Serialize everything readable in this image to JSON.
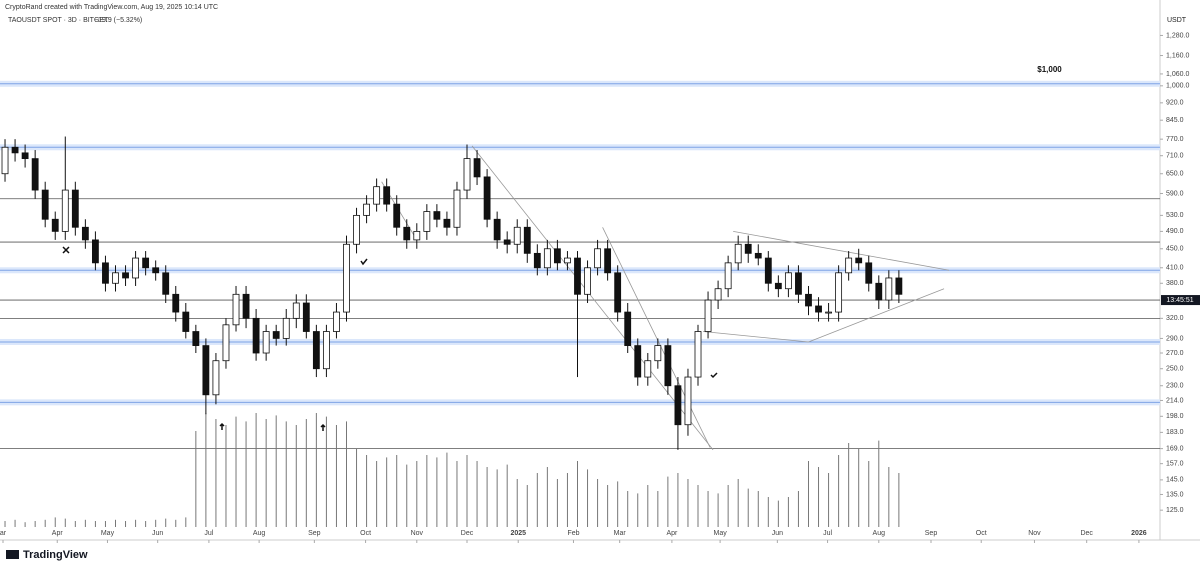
{
  "header": {
    "credit": "CryptoRand created with TradingView.com, Aug 19, 2025 10:14 UTC",
    "symbol": "TAOUSDT SPOT · 3D · BITGET",
    "change": "−19.9 (−5.32%)"
  },
  "footer": {
    "logo": "TradingView"
  },
  "chart_data": {
    "type": "candlestick",
    "currency": "USDT",
    "log_scale": true,
    "xlim": [
      -0.5,
      115
    ],
    "ylim": [
      108,
      1450
    ],
    "vlim": [
      0,
      100
    ],
    "xticks": [
      {
        "value": -0.2,
        "label": "ar"
      },
      {
        "value": 5.2,
        "label": "Apr"
      },
      {
        "value": 10.2,
        "label": "May"
      },
      {
        "value": 15.2,
        "label": "Jun"
      },
      {
        "value": 20.3,
        "label": "Jul"
      },
      {
        "value": 25.3,
        "label": "Aug"
      },
      {
        "value": 30.8,
        "label": "Sep"
      },
      {
        "value": 35.9,
        "label": "Oct"
      },
      {
        "value": 41,
        "label": "Nov"
      },
      {
        "value": 46,
        "label": "Dec"
      },
      {
        "value": 51.1,
        "label": "2025"
      },
      {
        "value": 56.6,
        "label": "Feb"
      },
      {
        "value": 61.2,
        "label": "Mar"
      },
      {
        "value": 66.4,
        "label": "Apr"
      },
      {
        "value": 71.2,
        "label": "May"
      },
      {
        "value": 76.9,
        "label": "Jun"
      },
      {
        "value": 81.9,
        "label": "Jul"
      },
      {
        "value": 87,
        "label": "Aug"
      },
      {
        "value": 92.2,
        "label": "Sep"
      },
      {
        "value": 97.2,
        "label": "Oct"
      },
      {
        "value": 102.5,
        "label": "Nov"
      },
      {
        "value": 107.7,
        "label": "Dec"
      },
      {
        "value": 112.9,
        "label": "2026"
      }
    ],
    "yticks": [
      {
        "value": 1280,
        "label": "1,280.0"
      },
      {
        "value": 1160,
        "label": "1,160.0"
      },
      {
        "value": 1060,
        "label": "1,060.0"
      },
      {
        "value": 1000,
        "label": "1,000.0"
      },
      {
        "value": 920,
        "label": "920.0"
      },
      {
        "value": 845,
        "label": "845.0"
      },
      {
        "value": 770,
        "label": "770.0"
      },
      {
        "value": 710,
        "label": "710.0"
      },
      {
        "value": 650,
        "label": "650.0"
      },
      {
        "value": 590,
        "label": "590.0"
      },
      {
        "value": 530,
        "label": "530.0"
      },
      {
        "value": 490,
        "label": "490.0"
      },
      {
        "value": 450,
        "label": "450.0"
      },
      {
        "value": 410,
        "label": "410.0"
      },
      {
        "value": 380,
        "label": "380.0"
      },
      {
        "value": 320,
        "label": "320.0"
      },
      {
        "value": 290,
        "label": "290.0"
      },
      {
        "value": 270,
        "label": "270.0"
      },
      {
        "value": 250,
        "label": "250.0"
      },
      {
        "value": 230,
        "label": "230.0"
      },
      {
        "value": 214,
        "label": "214.0"
      },
      {
        "value": 198,
        "label": "198.0"
      },
      {
        "value": 183,
        "label": "183.0"
      },
      {
        "value": 169,
        "label": "169.0"
      },
      {
        "value": 157,
        "label": "157.0"
      },
      {
        "value": 145,
        "label": "145.0"
      },
      {
        "value": 135,
        "label": "135.0"
      },
      {
        "value": 125,
        "label": "125.0"
      }
    ],
    "countdown": {
      "value": 350,
      "label": "13:45:51"
    },
    "annotation": {
      "value": 1000,
      "x": 104,
      "label": "$1,000"
    },
    "zones": [
      1010,
      740,
      405,
      285,
      212
    ],
    "levels": [
      575,
      465,
      350,
      320,
      169
    ],
    "trendlines": [
      [
        [
          46.5,
          745
        ],
        [
          70.5,
          168
        ]
      ],
      [
        [
          37.5,
          625
        ],
        [
          41,
          470
        ]
      ],
      [
        [
          59.5,
          500
        ],
        [
          70.2,
          170
        ]
      ],
      [
        [
          69.5,
          300
        ],
        [
          80,
          285
        ]
      ],
      [
        [
          72.5,
          490
        ],
        [
          94,
          405
        ]
      ],
      [
        [
          80,
          285
        ],
        [
          93.5,
          370
        ]
      ]
    ],
    "candles": [
      [
        650,
        770,
        625,
        740
      ],
      [
        740,
        770,
        690,
        720
      ],
      [
        720,
        750,
        670,
        700
      ],
      [
        700,
        730,
        575,
        600
      ],
      [
        600,
        625,
        500,
        520
      ],
      [
        520,
        540,
        470,
        490
      ],
      [
        490,
        780,
        470,
        600
      ],
      [
        600,
        625,
        480,
        500
      ],
      [
        500,
        520,
        450,
        470
      ],
      [
        470,
        490,
        405,
        420
      ],
      [
        420,
        435,
        365,
        380
      ],
      [
        380,
        415,
        365,
        400
      ],
      [
        400,
        415,
        375,
        390
      ],
      [
        390,
        445,
        375,
        430
      ],
      [
        430,
        445,
        395,
        410
      ],
      [
        410,
        425,
        385,
        400
      ],
      [
        400,
        415,
        345,
        360
      ],
      [
        360,
        375,
        315,
        330
      ],
      [
        330,
        345,
        290,
        300
      ],
      [
        300,
        310,
        270,
        280
      ],
      [
        280,
        290,
        200,
        220
      ],
      [
        220,
        270,
        210,
        260
      ],
      [
        260,
        320,
        250,
        310
      ],
      [
        310,
        375,
        300,
        360
      ],
      [
        360,
        375,
        305,
        320
      ],
      [
        320,
        335,
        260,
        270
      ],
      [
        270,
        310,
        260,
        300
      ],
      [
        300,
        310,
        280,
        290
      ],
      [
        290,
        335,
        280,
        320
      ],
      [
        320,
        360,
        305,
        345
      ],
      [
        345,
        360,
        290,
        300
      ],
      [
        300,
        310,
        240,
        250
      ],
      [
        250,
        310,
        240,
        300
      ],
      [
        300,
        345,
        290,
        330
      ],
      [
        330,
        480,
        315,
        460
      ],
      [
        460,
        550,
        440,
        530
      ],
      [
        530,
        585,
        510,
        560
      ],
      [
        560,
        635,
        540,
        610
      ],
      [
        610,
        635,
        540,
        560
      ],
      [
        560,
        585,
        480,
        500
      ],
      [
        500,
        520,
        450,
        470
      ],
      [
        470,
        510,
        450,
        490
      ],
      [
        490,
        560,
        470,
        540
      ],
      [
        540,
        560,
        500,
        520
      ],
      [
        520,
        540,
        480,
        500
      ],
      [
        500,
        625,
        480,
        600
      ],
      [
        600,
        750,
        575,
        700
      ],
      [
        700,
        730,
        615,
        640
      ],
      [
        640,
        665,
        500,
        520
      ],
      [
        520,
        540,
        450,
        470
      ],
      [
        470,
        490,
        440,
        460
      ],
      [
        460,
        520,
        440,
        500
      ],
      [
        500,
        520,
        420,
        440
      ],
      [
        440,
        460,
        395,
        410
      ],
      [
        410,
        470,
        395,
        450
      ],
      [
        450,
        470,
        405,
        420
      ],
      [
        420,
        445,
        405,
        430
      ],
      [
        430,
        445,
        240,
        360
      ],
      [
        360,
        425,
        345,
        410
      ],
      [
        410,
        470,
        395,
        450
      ],
      [
        450,
        470,
        385,
        400
      ],
      [
        400,
        415,
        315,
        330
      ],
      [
        330,
        345,
        270,
        280
      ],
      [
        280,
        290,
        230,
        240
      ],
      [
        240,
        270,
        230,
        260
      ],
      [
        260,
        290,
        250,
        280
      ],
      [
        280,
        290,
        220,
        230
      ],
      [
        230,
        240,
        168,
        190
      ],
      [
        190,
        250,
        180,
        240
      ],
      [
        240,
        310,
        230,
        300
      ],
      [
        300,
        365,
        290,
        350
      ],
      [
        350,
        385,
        335,
        370
      ],
      [
        370,
        435,
        355,
        420
      ],
      [
        420,
        480,
        405,
        460
      ],
      [
        460,
        480,
        420,
        440
      ],
      [
        440,
        460,
        415,
        430
      ],
      [
        430,
        445,
        365,
        380
      ],
      [
        380,
        395,
        355,
        370
      ],
      [
        370,
        415,
        355,
        400
      ],
      [
        400,
        415,
        345,
        360
      ],
      [
        360,
        375,
        325,
        340
      ],
      [
        340,
        355,
        315,
        330
      ],
      [
        330,
        345,
        315,
        330
      ],
      [
        330,
        415,
        315,
        400
      ],
      [
        400,
        445,
        385,
        430
      ],
      [
        430,
        450,
        405,
        420
      ],
      [
        420,
        435,
        365,
        380
      ],
      [
        380,
        395,
        335,
        350
      ],
      [
        350,
        405,
        335,
        390
      ],
      [
        390,
        405,
        345,
        360
      ]
    ],
    "volume": [
      5,
      6,
      4,
      5,
      6,
      8,
      7,
      5,
      6,
      5,
      5,
      6,
      5,
      6,
      5,
      6,
      7,
      6,
      8,
      80,
      95,
      90,
      85,
      92,
      88,
      95,
      90,
      93,
      88,
      85,
      90,
      95,
      92,
      85,
      88,
      65,
      60,
      55,
      58,
      60,
      52,
      55,
      60,
      58,
      62,
      55,
      60,
      55,
      50,
      48,
      52,
      40,
      35,
      45,
      50,
      40,
      45,
      55,
      48,
      40,
      35,
      38,
      30,
      28,
      35,
      30,
      42,
      45,
      40,
      35,
      30,
      28,
      35,
      40,
      32,
      30,
      25,
      22,
      25,
      30,
      55,
      50,
      45,
      60,
      70,
      65,
      55,
      72,
      50,
      45
    ]
  }
}
